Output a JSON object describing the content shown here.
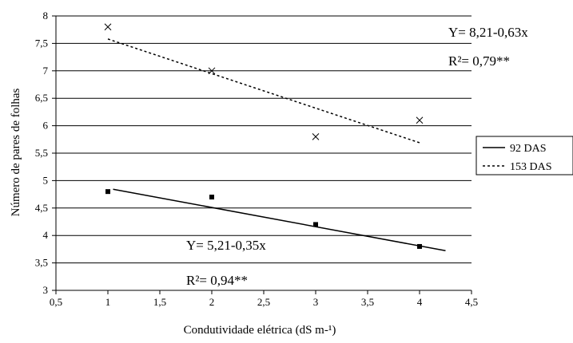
{
  "chart_data": {
    "type": "scatter",
    "xlabel": "Condutividade elétrica (dS m-¹)",
    "ylabel": "Número de pares de folhas",
    "xlim": [
      0.5,
      4.5
    ],
    "ylim": [
      3,
      8
    ],
    "x_ticks": [
      "0,5",
      "1",
      "1,5",
      "2",
      "2,5",
      "3",
      "3,5",
      "4",
      "4,5"
    ],
    "y_ticks": [
      "3",
      "3,5",
      "4",
      "4,5",
      "5",
      "5,5",
      "6",
      "6,5",
      "7",
      "7,5",
      "8"
    ],
    "grid": "horizontal",
    "legend_position": "right",
    "series": [
      {
        "name": "92 DAS",
        "marker": "square",
        "line_style": "solid",
        "x": [
          1,
          2,
          3,
          4
        ],
        "y": [
          4.8,
          4.7,
          4.2,
          3.8
        ],
        "trend": {
          "x_start": 1.05,
          "x_end": 4.25,
          "intercept": 5.21,
          "slope": -0.35
        },
        "equation": "Y= 5,21-0,35x",
        "r2": "R²= 0,94**"
      },
      {
        "name": "153 DAS",
        "marker": "x",
        "line_style": "dashed",
        "x": [
          1,
          2,
          3,
          4
        ],
        "y": [
          7.8,
          7.0,
          5.8,
          6.1
        ],
        "trend": {
          "x_start": 1.0,
          "x_end": 4.0,
          "intercept": 8.21,
          "slope": -0.63
        },
        "equation": "Y= 8,21-0,63x",
        "r2": "R²= 0,79**"
      }
    ]
  }
}
